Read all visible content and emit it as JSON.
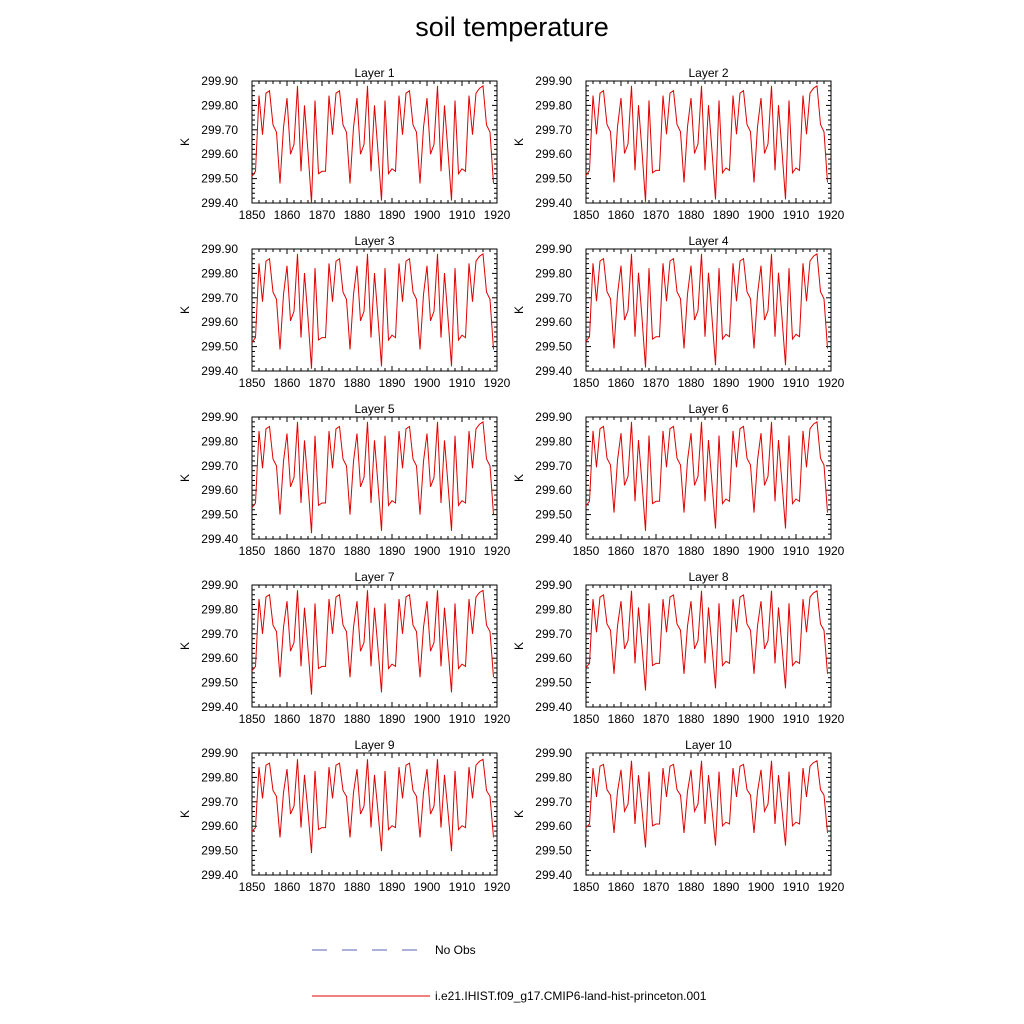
{
  "title": "soil temperature",
  "chart_data": {
    "type": "line",
    "ylabel": "K",
    "xlim": [
      1850,
      1920
    ],
    "ylim": [
      299.4,
      299.9
    ],
    "x_ticks": [
      "1850",
      "1860",
      "1870",
      "1880",
      "1890",
      "1900",
      "1910",
      "1920"
    ],
    "y_ticks": [
      "299.40",
      "299.50",
      "299.60",
      "299.70",
      "299.80",
      "299.90"
    ],
    "x": [
      1850,
      1851,
      1852,
      1853,
      1854,
      1855,
      1856,
      1857,
      1858,
      1859,
      1860,
      1861,
      1862,
      1863,
      1864,
      1865,
      1866,
      1867,
      1868,
      1869,
      1870,
      1871,
      1872,
      1873,
      1874,
      1875,
      1876,
      1877,
      1878,
      1879,
      1880,
      1881,
      1882,
      1883,
      1884,
      1885,
      1886,
      1887,
      1888,
      1889,
      1890,
      1891,
      1892,
      1893,
      1894,
      1895,
      1896,
      1897,
      1898,
      1899,
      1900,
      1901,
      1902,
      1903,
      1904,
      1905,
      1906,
      1907,
      1908,
      1909,
      1910,
      1911,
      1912,
      1913,
      1914,
      1915,
      1916,
      1917,
      1918,
      1919
    ],
    "base_series": [
      299.51,
      299.53,
      299.84,
      299.68,
      299.85,
      299.86,
      299.72,
      299.69,
      299.48,
      299.71,
      299.83,
      299.6,
      299.64,
      299.88,
      299.53,
      299.8,
      299.61,
      299.4,
      299.82,
      299.52,
      299.53,
      299.53,
      299.84,
      299.68,
      299.85,
      299.86,
      299.72,
      299.69,
      299.48,
      299.71,
      299.83,
      299.6,
      299.64,
      299.88,
      299.53,
      299.8,
      299.61,
      299.41,
      299.82,
      299.52,
      299.54,
      299.53,
      299.84,
      299.68,
      299.85,
      299.86,
      299.72,
      299.69,
      299.48,
      299.71,
      299.83,
      299.6,
      299.64,
      299.88,
      299.53,
      299.8,
      299.61,
      299.41,
      299.82,
      299.52,
      299.54,
      299.53,
      299.84,
      299.68,
      299.85,
      299.87,
      299.88,
      299.72,
      299.69,
      299.48
    ],
    "series_color": "#e00000",
    "obs_color": "#5a62b5",
    "panels": [
      {
        "title": "Layer 1",
        "offset": 0.0,
        "scale": 1.0
      },
      {
        "title": "Layer 2",
        "offset": 0.002,
        "scale": 0.99
      },
      {
        "title": "Layer 3",
        "offset": 0.004,
        "scale": 0.98
      },
      {
        "title": "Layer 4",
        "offset": 0.006,
        "scale": 0.97
      },
      {
        "title": "Layer 5",
        "offset": 0.01,
        "scale": 0.95
      },
      {
        "title": "Layer 6",
        "offset": 0.014,
        "scale": 0.93
      },
      {
        "title": "Layer 7",
        "offset": 0.02,
        "scale": 0.89
      },
      {
        "title": "Layer 8",
        "offset": 0.026,
        "scale": 0.85
      },
      {
        "title": "Layer 9",
        "offset": 0.034,
        "scale": 0.8
      },
      {
        "title": "Layer 10",
        "offset": 0.04,
        "scale": 0.74
      }
    ],
    "legend": [
      {
        "label": "No Obs",
        "style": "dashed"
      },
      {
        "label": "i.e21.IHIST.f09_g17.CMIP6-land-hist-princeton.001",
        "style": "solid"
      }
    ]
  }
}
